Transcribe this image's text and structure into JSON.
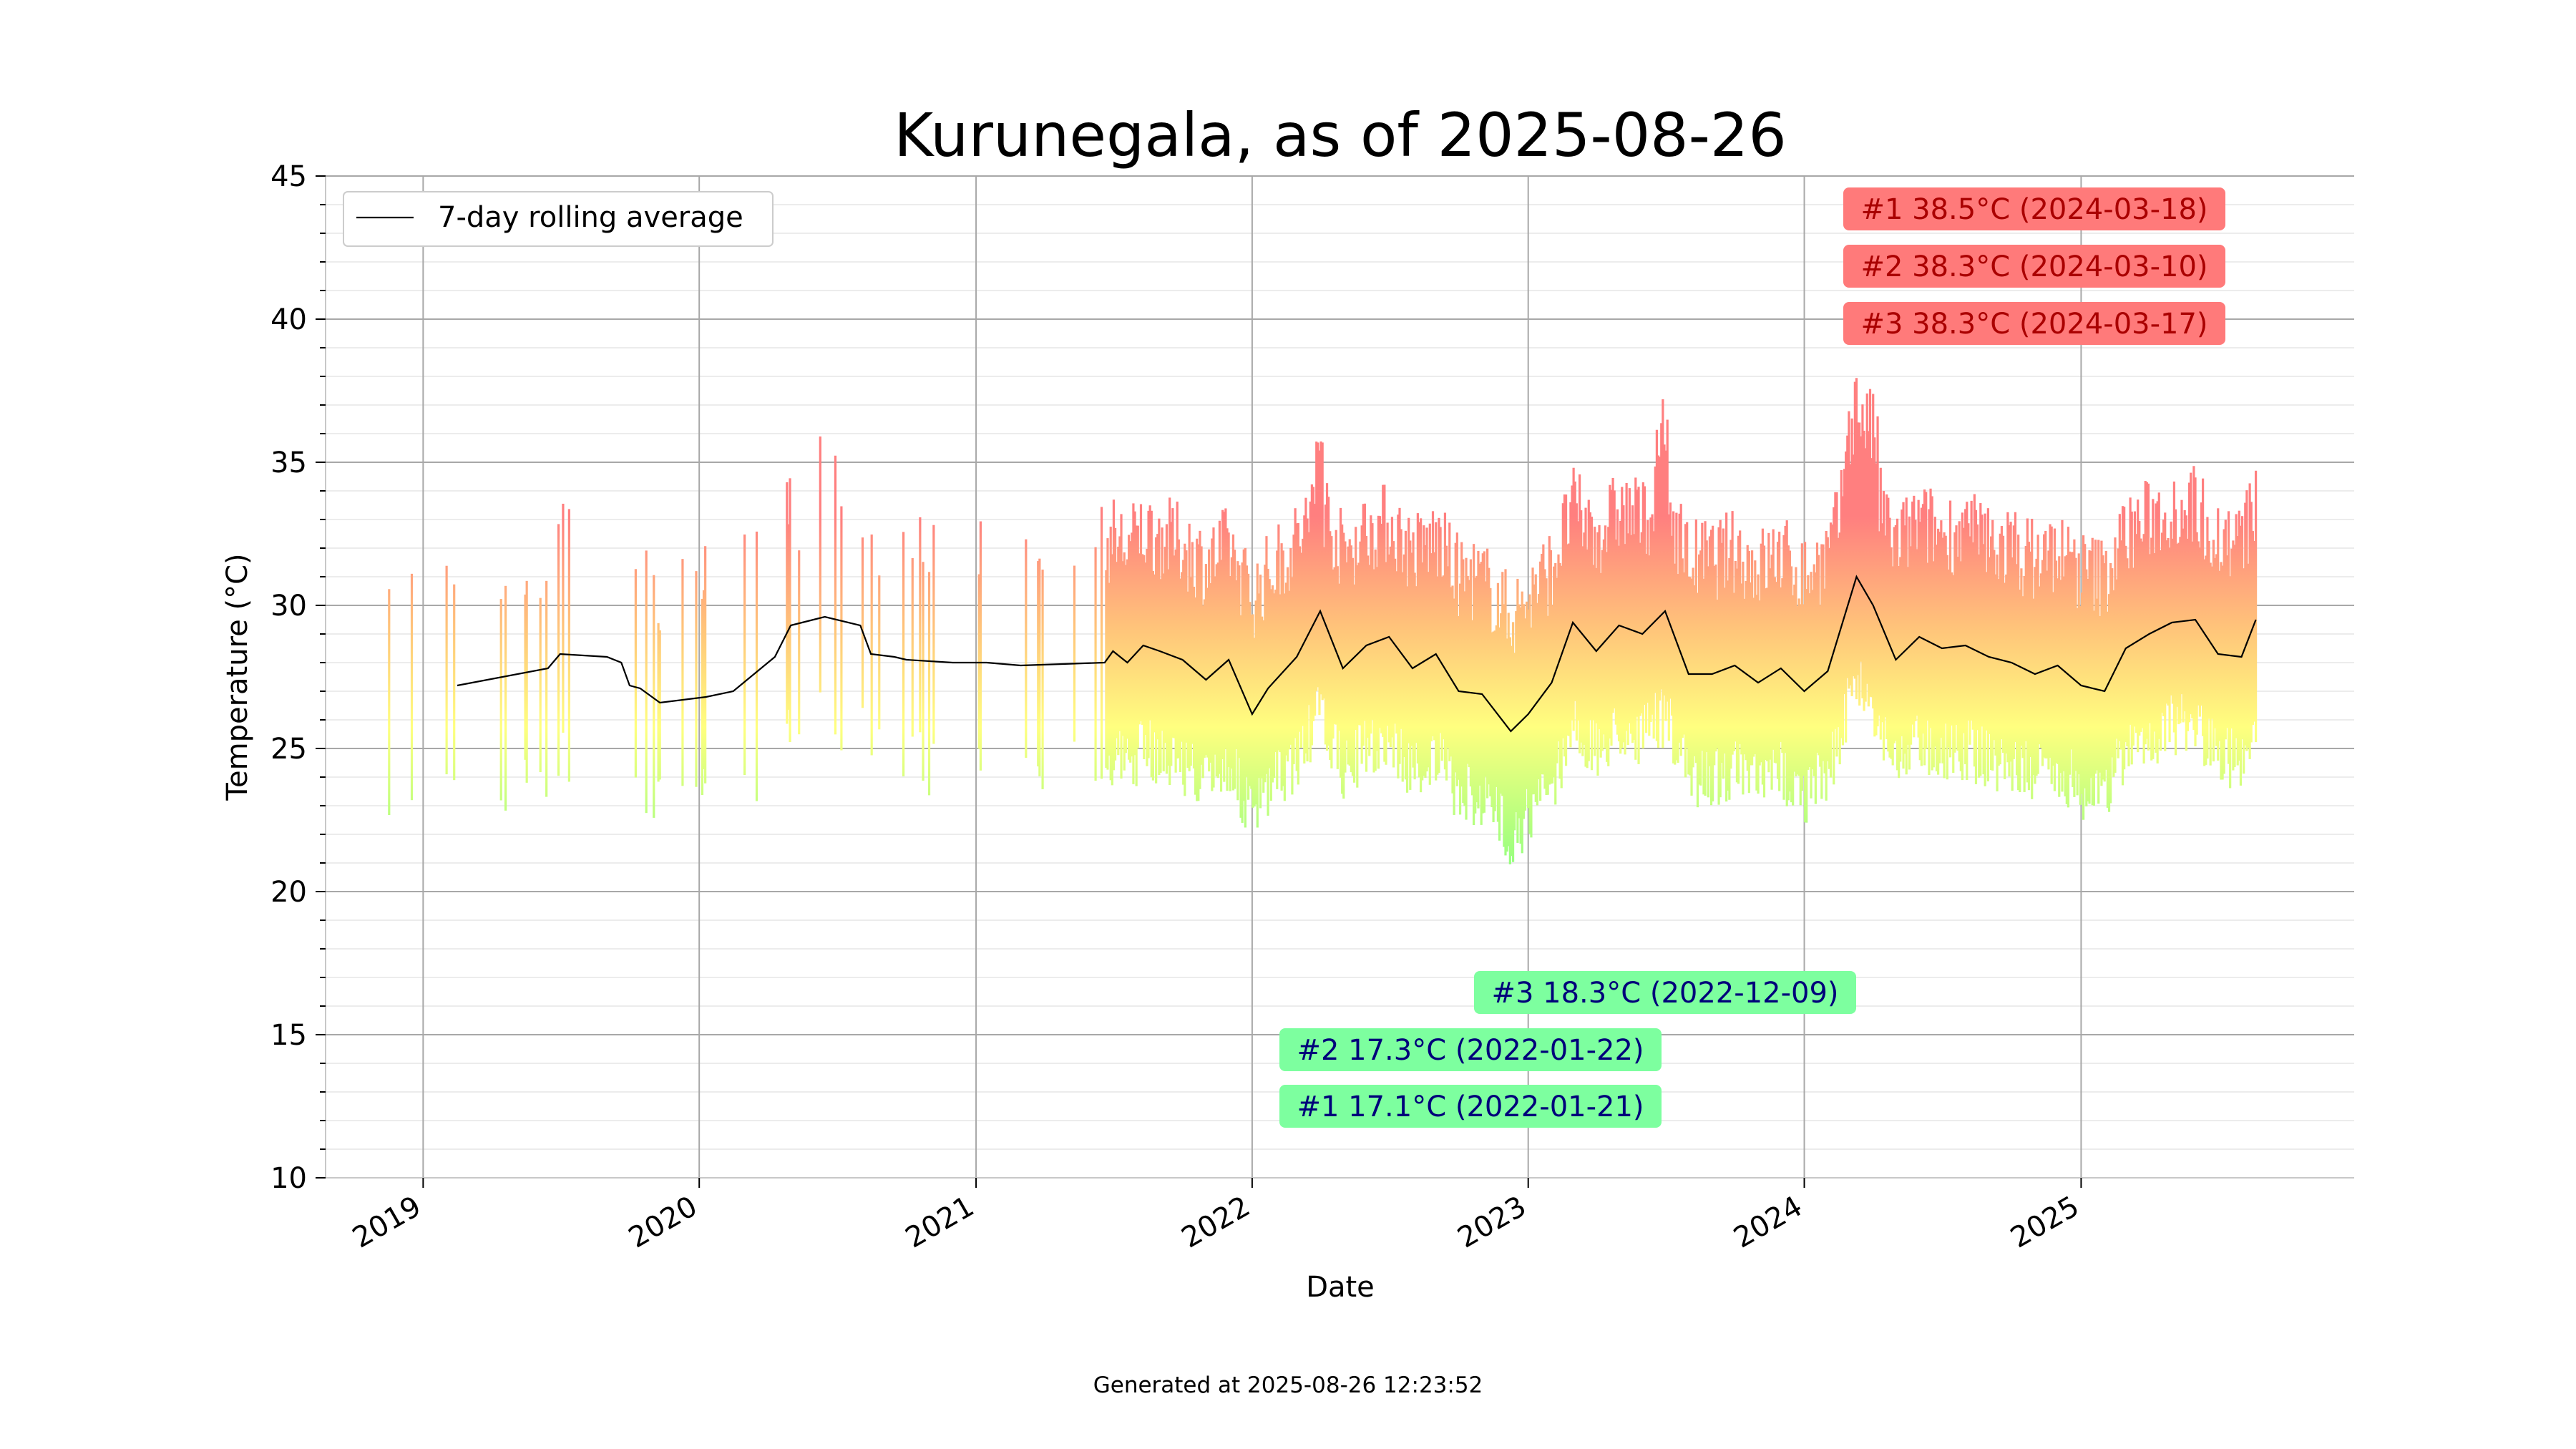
{
  "chart_data": {
    "type": "line",
    "title": "Kurunegala, as of 2025-08-26",
    "xlabel": "Date",
    "ylabel": "Temperature (°C)",
    "x_range": [
      "2018-08-25",
      "2025-12-28"
    ],
    "ylim": [
      10,
      45
    ],
    "x_ticks": [
      "2019",
      "2020",
      "2021",
      "2022",
      "2023",
      "2024",
      "2025"
    ],
    "y_ticks": [
      10,
      15,
      20,
      25,
      30,
      35,
      40,
      45
    ],
    "grid": true,
    "legend": {
      "position": "top-left",
      "entries": [
        "7-day rolling average"
      ]
    },
    "series": [
      {
        "name": "7-day rolling average",
        "x": [
          "2019-02-15",
          "2019-06-15",
          "2019-07-01",
          "2019-09-01",
          "2019-09-20",
          "2019-10-01",
          "2019-10-15",
          "2019-11-10",
          "2020-01-10",
          "2020-02-15",
          "2020-04-10",
          "2020-05-01",
          "2020-06-15",
          "2020-08-01",
          "2020-08-15",
          "2020-09-15",
          "2020-10-01",
          "2020-12-01",
          "2020-12-20",
          "2021-01-15",
          "2021-03-01",
          "2021-06-20",
          "2021-07-01",
          "2021-07-20",
          "2021-08-10",
          "2021-09-01",
          "2021-10-01",
          "2021-11-01",
          "2021-12-01",
          "2022-01-01",
          "2022-01-22",
          "2022-03-01",
          "2022-04-01",
          "2022-05-01",
          "2022-06-01",
          "2022-07-01",
          "2022-08-01",
          "2022-09-01",
          "2022-10-01",
          "2022-11-01",
          "2022-12-09",
          "2023-01-01",
          "2023-02-01",
          "2023-03-01",
          "2023-04-01",
          "2023-05-01",
          "2023-06-01",
          "2023-07-01",
          "2023-08-01",
          "2023-09-01",
          "2023-10-01",
          "2023-11-01",
          "2023-12-01",
          "2024-01-01",
          "2024-02-01",
          "2024-03-10",
          "2024-04-01",
          "2024-05-01",
          "2024-06-01",
          "2024-07-01",
          "2024-08-01",
          "2024-09-01",
          "2024-10-01",
          "2024-11-01",
          "2024-12-01",
          "2025-01-01",
          "2025-02-01",
          "2025-03-01",
          "2025-04-01",
          "2025-05-01",
          "2025-06-01",
          "2025-07-01",
          "2025-08-01",
          "2025-08-20"
        ],
        "values": [
          27.2,
          27.8,
          28.3,
          28.2,
          28.0,
          27.2,
          27.1,
          26.6,
          26.8,
          27.0,
          28.2,
          29.3,
          29.6,
          29.3,
          28.3,
          28.2,
          28.1,
          28.0,
          28.0,
          28.0,
          27.9,
          28.0,
          28.4,
          28.0,
          28.6,
          28.4,
          28.1,
          27.4,
          28.1,
          26.2,
          27.1,
          28.2,
          29.8,
          27.8,
          28.6,
          28.9,
          27.8,
          28.3,
          27.0,
          26.9,
          25.6,
          26.2,
          27.3,
          29.4,
          28.4,
          29.3,
          29.0,
          29.8,
          27.6,
          27.6,
          27.9,
          27.3,
          27.8,
          27.0,
          27.7,
          31.0,
          30.0,
          28.1,
          28.9,
          28.5,
          28.6,
          28.2,
          28.0,
          27.6,
          27.9,
          27.2,
          27.0,
          28.5,
          29.0,
          29.4,
          29.5,
          28.3,
          28.2,
          29.5
        ]
      }
    ],
    "annotations": [
      {
        "label": "#1 38.5°C (2024-03-18)",
        "kind": "max",
        "color": "#ff7a7a"
      },
      {
        "label": "#2 38.3°C (2024-03-10)",
        "kind": "max",
        "color": "#ff7a7a"
      },
      {
        "label": "#3 38.3°C (2024-03-17)",
        "kind": "max",
        "color": "#ff7a7a"
      },
      {
        "label": "#3 18.3°C (2022-12-09)",
        "kind": "min",
        "color": "#7dff9f"
      },
      {
        "label": "#2 17.3°C (2022-01-22)",
        "kind": "min",
        "color": "#7dff9f"
      },
      {
        "label": "#1 17.1°C (2022-01-21)",
        "kind": "min",
        "color": "#7dff9f"
      }
    ],
    "colors": {
      "hot": "#ff7f7f",
      "warm": "#ffc37a",
      "mild": "#ffff7f",
      "cool": "#8cff7f",
      "line": "#000000"
    }
  },
  "footer": "Generated at 2025-08-26 12:23:52"
}
